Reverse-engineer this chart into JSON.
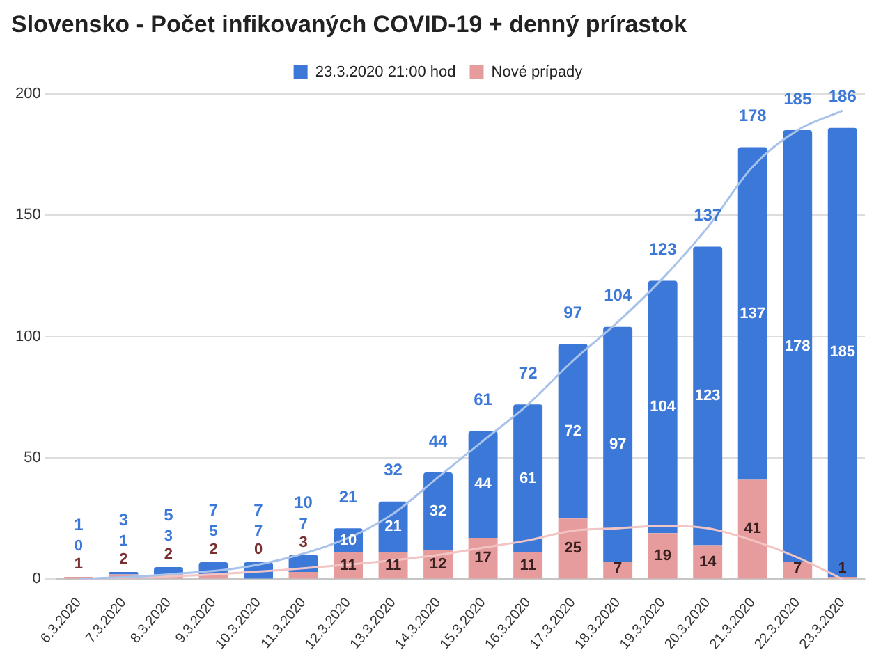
{
  "chart_data": {
    "type": "bar",
    "title": "Slovensko - Počet infikovaných COVID-19 + denný prírastok",
    "categories": [
      "6.3.2020",
      "7.3.2020",
      "8.3.2020",
      "9.3.2020",
      "10.3.2020",
      "11.3.2020",
      "12.3.2020",
      "13.3.2020",
      "14.3.2020",
      "15.3.2020",
      "16.3.2020",
      "17.3.2020",
      "18.3.2020",
      "19.3.2020",
      "20.3.2020",
      "21.3.2020",
      "22.3.2020",
      "23.3.2020"
    ],
    "stacked": true,
    "series": [
      {
        "name": "Nové prípady",
        "color": "#e69c9c",
        "values": [
          1,
          2,
          2,
          2,
          0,
          3,
          11,
          11,
          12,
          17,
          11,
          25,
          7,
          19,
          14,
          41,
          7,
          1
        ],
        "value_labels": [
          "1",
          "2",
          "2",
          "2",
          "0",
          "3",
          "11",
          "11",
          "12",
          "17",
          "11",
          "25",
          "7",
          "19",
          "14",
          "41",
          "7",
          "1"
        ]
      },
      {
        "name": "23.3.2020 21:00 hod",
        "color": "#3c78d8",
        "values": [
          0,
          1,
          3,
          5,
          7,
          7,
          10,
          21,
          32,
          44,
          61,
          72,
          97,
          104,
          123,
          137,
          178,
          185
        ],
        "value_labels": [
          "0",
          "1",
          "3",
          "5",
          "7",
          "7",
          "10",
          "21",
          "32",
          "44",
          "61",
          "72",
          "97",
          "104",
          "123",
          "137",
          "178",
          "185"
        ]
      },
      {
        "type": "line",
        "color": "#a8c2ea",
        "x": [
          "6.3.2020",
          "8.3.2020",
          "10.3.2020",
          "12.3.2020",
          "13.3.2020",
          "14.3.2020",
          "15.3.2020",
          "16.3.2020",
          "17.3.2020",
          "18.3.2020",
          "19.3.2020",
          "20.3.2020",
          "21.3.2020",
          "22.3.2020",
          "23.3.2020"
        ],
        "values": [
          0,
          2,
          6,
          17,
          27,
          42,
          57,
          72,
          90,
          106,
          124,
          145,
          170,
          185,
          193
        ]
      },
      {
        "type": "line",
        "color": "#f2c4c4",
        "x": [
          "6.3.2020",
          "9.3.2020",
          "12.3.2020",
          "14.3.2020",
          "15.3.2020",
          "16.3.2020",
          "17.3.2020",
          "18.3.2020",
          "19.3.2020",
          "20.3.2020",
          "21.3.2020",
          "22.3.2020",
          "23.3.2020"
        ],
        "values": [
          0,
          2,
          6,
          10,
          13,
          16,
          20,
          21,
          22,
          21,
          16,
          9,
          0
        ]
      }
    ],
    "totals": [
      "1",
      "3",
      "5",
      "7",
      "7",
      "10",
      "21",
      "32",
      "44",
      "61",
      "72",
      "97",
      "104",
      "123",
      "137",
      "178",
      "185",
      "186"
    ],
    "ylim": [
      0,
      200
    ],
    "yticks": [
      0,
      50,
      100,
      150,
      200
    ],
    "grid": "y",
    "legend": "top",
    "marker": "none"
  }
}
